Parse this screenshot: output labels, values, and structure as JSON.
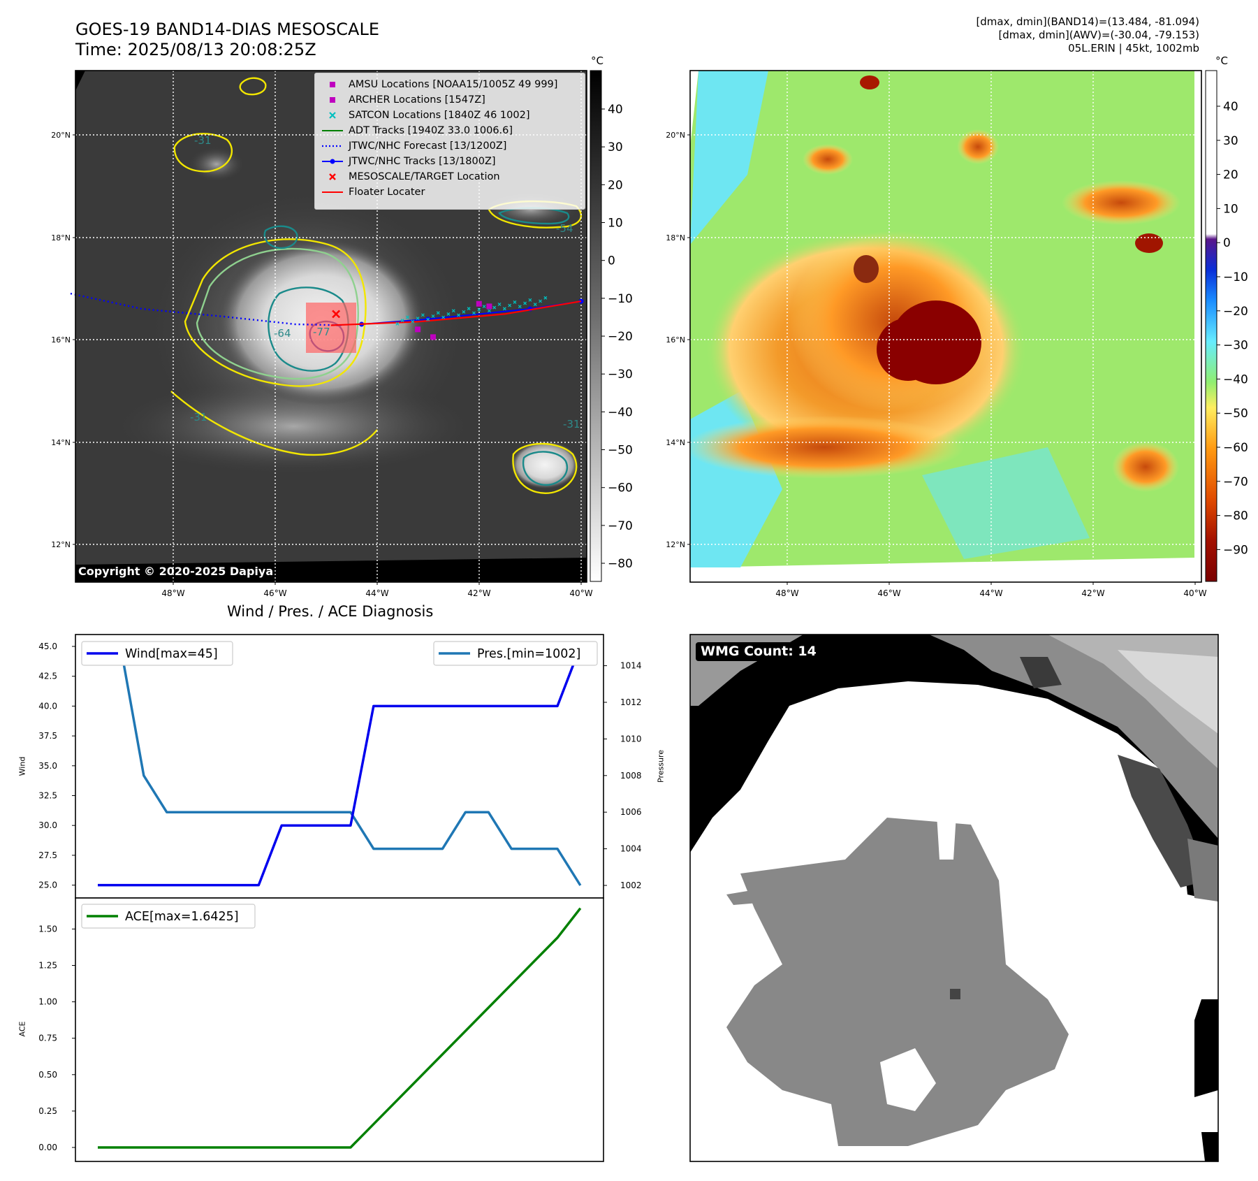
{
  "title": {
    "line1": "GOES-19 BAND14-DIAS MESOSCALE",
    "line2": "Time: 2025/08/13 20:08:25Z"
  },
  "stats": {
    "band14": "[dmax, dmin](BAND14)=(13.484, -81.094)",
    "awv": "[dmax, dmin](AWV)=(-30.04, -79.153)",
    "storm": "05L.ERIN | 45kt, 1002mb"
  },
  "copyright": "Copyright © 2020-2025 Dapiya",
  "wmg_label": "WMG Count: 14",
  "colors": {
    "wind": "#0000ee",
    "pressure": "#1f77b4",
    "ace": "#008000",
    "amsu": "#bf00bf",
    "satcon": "#00bfbf",
    "adt": "#008000",
    "forecast": "#0000ff",
    "tracks": "#0000ff",
    "target": "#ff0000",
    "floater": "#ff0000",
    "contour_yellow": "#f2e600",
    "contour_teal": "#1a8a8a"
  },
  "map": {
    "lat_labels": [
      "20°N",
      "18°N",
      "16°N",
      "14°N",
      "12°N"
    ],
    "lon_labels": [
      "48°W",
      "46°W",
      "44°W",
      "42°W",
      "40°W"
    ],
    "colorbar_unit": "°C",
    "ir_colorbar_ticks": [
      "40",
      "30",
      "20",
      "10",
      "0",
      "−10",
      "−20",
      "−30",
      "−40",
      "−50",
      "−60",
      "−70",
      "−80"
    ],
    "dias_colorbar_ticks": [
      "40",
      "30",
      "20",
      "10",
      "0",
      "−10",
      "−20",
      "−30",
      "−40",
      "−50",
      "−60",
      "−70",
      "−80",
      "−90"
    ],
    "contour_labels": [
      "-31",
      "-54",
      "-64",
      "-77",
      "-31",
      "-31"
    ],
    "legend": [
      {
        "label": "AMSU Locations [NOAA15/1005Z 49 999]",
        "icon": "square-marker"
      },
      {
        "label": "ARCHER Locations [1547Z]",
        "icon": "square-marker"
      },
      {
        "label": "SATCON Locations [1840Z 46 1002]",
        "icon": "x-marker"
      },
      {
        "label": "ADT Tracks [1940Z 33.0 1006.6]",
        "icon": "solid-line"
      },
      {
        "label": "JTWC/NHC Forecast [13/1200Z]",
        "icon": "dotted-line"
      },
      {
        "label": "JTWC/NHC Tracks [13/1800Z]",
        "icon": "line-dot"
      },
      {
        "label": "MESOSCALE/TARGET Location",
        "icon": "x-marker"
      },
      {
        "label": "Floater Locater",
        "icon": "solid-line"
      }
    ],
    "forecast_track": [
      [
        -50.0,
        16.9
      ],
      [
        -48.6,
        16.6
      ],
      [
        -47.0,
        16.45
      ],
      [
        -45.6,
        16.3
      ],
      [
        -44.7,
        16.28
      ]
    ],
    "nhc_track": [
      [
        -44.3,
        16.3
      ],
      [
        -43.0,
        16.4
      ],
      [
        -41.0,
        16.6
      ],
      [
        -40.0,
        16.75
      ]
    ],
    "floater_track": [
      [
        -44.9,
        16.28
      ],
      [
        -43.2,
        16.35
      ],
      [
        -41.5,
        16.5
      ],
      [
        -40.0,
        16.75
      ]
    ],
    "amsu_points": [
      [
        -42.0,
        16.7
      ],
      [
        -41.8,
        16.65
      ],
      [
        -43.2,
        16.2
      ],
      [
        -42.9,
        16.05
      ]
    ],
    "target_point": [
      -44.8,
      16.5
    ]
  },
  "diag_title": "Wind / Pres. / ACE Diagnosis",
  "chart_data": [
    {
      "type": "line",
      "title": "Wind / Pres. / ACE Diagnosis",
      "xlabel": "",
      "ylabel": "Wind",
      "ylabel_right": "Pressure",
      "ylim": [
        24.5,
        45.5
      ],
      "ylim_right": [
        1001.5,
        1015.5
      ],
      "yticks": [
        "45.0",
        "42.5",
        "40.0",
        "37.5",
        "35.0",
        "32.5",
        "30.0",
        "27.5",
        "25.0"
      ],
      "yticks_right": [
        "1014",
        "1012",
        "1010",
        "1008",
        "1006",
        "1004",
        "1002"
      ],
      "x": [
        0,
        1,
        2,
        3,
        4,
        5,
        6,
        7,
        8,
        9,
        10,
        11,
        12,
        13,
        14,
        15,
        16,
        17,
        18,
        19,
        20,
        21
      ],
      "series": [
        {
          "name": "Wind[max=45]",
          "axis": "left",
          "values": [
            25,
            25,
            25,
            25,
            25,
            25,
            25,
            25,
            30,
            30,
            30,
            30,
            40,
            40,
            40,
            40,
            40,
            40,
            40,
            40,
            40,
            45
          ]
        },
        {
          "name": "Pres.[min=1002]",
          "axis": "right",
          "values": [
            1015,
            1015,
            1008,
            1006,
            1006,
            1006,
            1006,
            1006,
            1006,
            1006,
            1006,
            1006,
            1004,
            1004,
            1004,
            1004,
            1006,
            1006,
            1004,
            1004,
            1004,
            1002
          ]
        }
      ]
    },
    {
      "type": "line",
      "xlabel": "",
      "ylabel": "ACE",
      "ylim": [
        -0.08,
        1.72
      ],
      "yticks": [
        "1.50",
        "1.25",
        "1.00",
        "0.75",
        "0.50",
        "0.25",
        "0.00"
      ],
      "x": [
        0,
        11,
        20,
        21
      ],
      "series": [
        {
          "name": "ACE[max=1.6425]",
          "values": [
            0.0,
            0.0,
            1.44,
            1.6425
          ]
        }
      ]
    }
  ]
}
